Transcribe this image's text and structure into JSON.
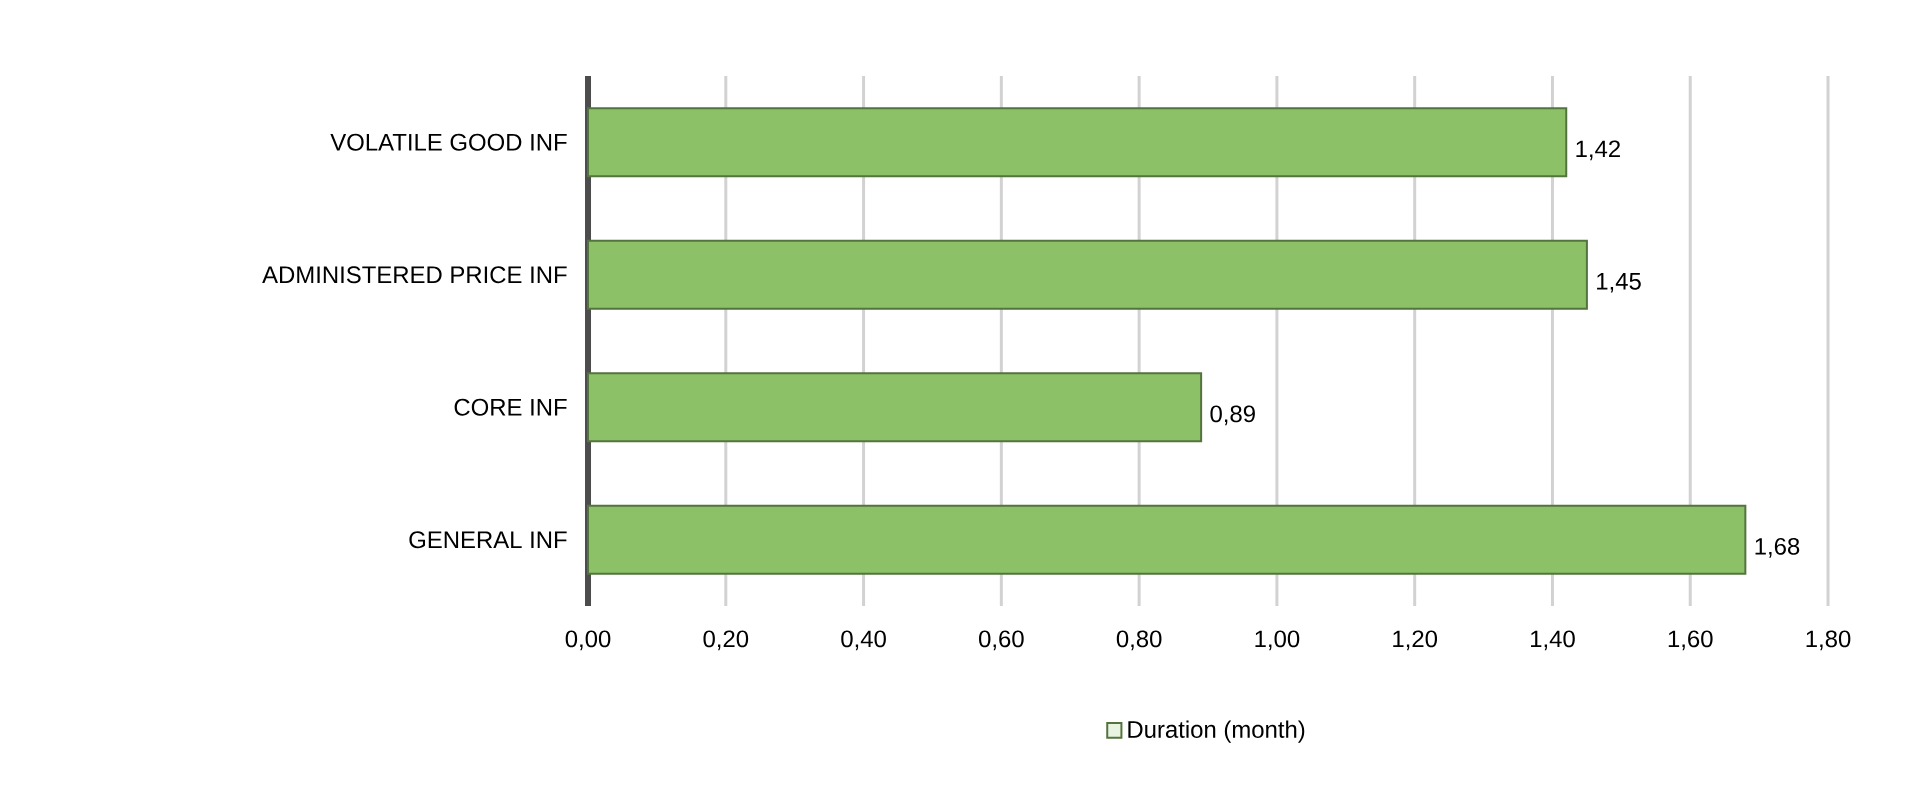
{
  "chart_data": {
    "type": "bar",
    "orientation": "horizontal",
    "categories": [
      "VOLATILE GOOD INF",
      "ADMINISTERED PRICE INF",
      "CORE INF",
      "GENERAL INF"
    ],
    "series": [
      {
        "name": "Duration (month)",
        "color": "#8cc168",
        "values": [
          1.42,
          1.45,
          0.89,
          1.68
        ],
        "value_labels": [
          "1,42",
          "1,45",
          "0,89",
          "1,68"
        ]
      }
    ],
    "xlim": [
      0,
      1.8
    ],
    "xticks": [
      {
        "value": 0,
        "label": "0,00"
      },
      {
        "value": 0.2,
        "label": "0,20"
      },
      {
        "value": 0.4,
        "label": "0,40"
      },
      {
        "value": 0.6,
        "label": "0,60"
      },
      {
        "value": 0.8,
        "label": "0,80"
      },
      {
        "value": 1.0,
        "label": "1,00"
      },
      {
        "value": 1.2,
        "label": "1,20"
      },
      {
        "value": 1.4,
        "label": "1,40"
      },
      {
        "value": 1.6,
        "label": "1,60"
      },
      {
        "value": 1.8,
        "label": "1,80"
      }
    ],
    "grid": "x",
    "legend": "bottom"
  }
}
